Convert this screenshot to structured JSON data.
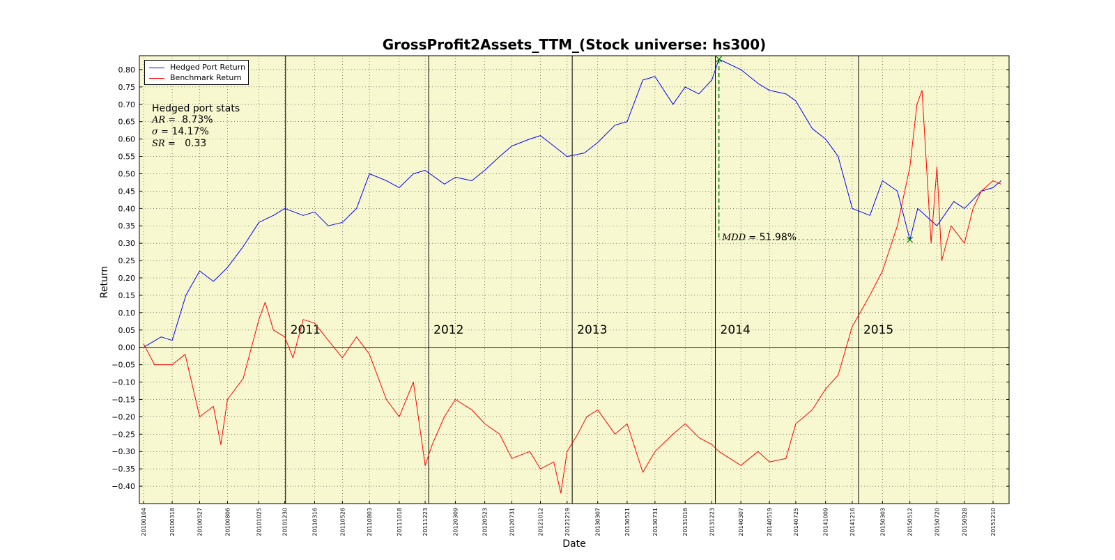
{
  "chart_data": {
    "type": "line",
    "title": "GrossProfit2Assets_TTM_(Stock universe: hs300)",
    "xlabel": "Date",
    "ylabel": "Return",
    "ylim": [
      -0.45,
      0.84
    ],
    "grid": true,
    "legend_position": "top-left",
    "background_color": "#f8f8d0",
    "x_tick_labels": [
      "20100104",
      "20100318",
      "20100527",
      "20100806",
      "20101025",
      "20101230",
      "20110316",
      "20110526",
      "20110803",
      "20111018",
      "20111223",
      "20120309",
      "20120523",
      "20120731",
      "20121012",
      "20121219",
      "20130307",
      "20130521",
      "20130731",
      "20131016",
      "20131223",
      "20140307",
      "20140519",
      "20140725",
      "20141009",
      "20141216",
      "20150303",
      "20150512",
      "20150720",
      "20150928",
      "20151210"
    ],
    "y_ticks": [
      -0.4,
      -0.35,
      -0.3,
      -0.25,
      -0.2,
      -0.15,
      -0.1,
      -0.05,
      0.0,
      0.05,
      0.1,
      0.15,
      0.2,
      0.25,
      0.3,
      0.35,
      0.4,
      0.45,
      0.5,
      0.55,
      0.6,
      0.65,
      0.7,
      0.75,
      0.8
    ],
    "y_tick_labels": [
      "−0.40",
      "−0.35",
      "−0.30",
      "−0.25",
      "−0.20",
      "−0.15",
      "−0.10",
      "−0.05",
      "0.00",
      "0.05",
      "0.10",
      "0.15",
      "0.20",
      "0.25",
      "0.30",
      "0.35",
      "0.40",
      "0.45",
      "0.50",
      "0.55",
      "0.60",
      "0.65",
      "0.70",
      "0.75",
      "0.80"
    ],
    "year_labels": [
      "2011",
      "2012",
      "2013",
      "2014",
      "2015"
    ],
    "series": [
      {
        "name": "Hedged Port Return",
        "color": "#0000ff",
        "x": [
          "20100104",
          "20100218",
          "20100318",
          "20100422",
          "20100527",
          "20100701",
          "20100806",
          "20100915",
          "20101025",
          "20101201",
          "20101230",
          "20110215",
          "20110316",
          "20110420",
          "20110526",
          "20110701",
          "20110803",
          "20110915",
          "20111018",
          "20111123",
          "20111223",
          "20120210",
          "20120309",
          "20120420",
          "20120523",
          "20120630",
          "20120731",
          "20120915",
          "20121012",
          "20121115",
          "20121219",
          "20130201",
          "20130307",
          "20130420",
          "20130521",
          "20130630",
          "20130731",
          "20130915",
          "20131016",
          "20131120",
          "20131223",
          "20140110",
          "20140307",
          "20140420",
          "20140519",
          "20140630",
          "20140725",
          "20140905",
          "20141009",
          "20141110",
          "20141216",
          "20150130",
          "20150303",
          "20150410",
          "20150512",
          "20150601",
          "20150720",
          "20150901",
          "20150928",
          "20151110",
          "20151210",
          "20151231"
        ],
        "values": [
          0.0,
          0.03,
          0.02,
          0.15,
          0.22,
          0.19,
          0.23,
          0.29,
          0.36,
          0.38,
          0.4,
          0.38,
          0.39,
          0.35,
          0.36,
          0.4,
          0.5,
          0.48,
          0.46,
          0.5,
          0.51,
          0.47,
          0.49,
          0.48,
          0.51,
          0.55,
          0.58,
          0.6,
          0.61,
          0.58,
          0.55,
          0.56,
          0.59,
          0.64,
          0.65,
          0.77,
          0.78,
          0.7,
          0.75,
          0.73,
          0.77,
          0.83,
          0.8,
          0.76,
          0.74,
          0.73,
          0.71,
          0.63,
          0.6,
          0.55,
          0.4,
          0.38,
          0.48,
          0.45,
          0.31,
          0.4,
          0.35,
          0.42,
          0.4,
          0.45,
          0.46,
          0.48
        ]
      },
      {
        "name": "Benchmark Return",
        "color": "#ff0000",
        "x": [
          "20100104",
          "20100201",
          "20100318",
          "20100420",
          "20100527",
          "20100701",
          "20100720",
          "20100806",
          "20100915",
          "20101025",
          "20101110",
          "20101201",
          "20101230",
          "20110120",
          "20110215",
          "20110316",
          "20110420",
          "20110526",
          "20110701",
          "20110803",
          "20110915",
          "20111018",
          "20111123",
          "20111223",
          "20120110",
          "20120210",
          "20120309",
          "20120420",
          "20120523",
          "20120630",
          "20120731",
          "20120915",
          "20121012",
          "20121115",
          "20121203",
          "20121219",
          "20130115",
          "20130207",
          "20130307",
          "20130420",
          "20130521",
          "20130630",
          "20130731",
          "20130915",
          "20131016",
          "20131120",
          "20131223",
          "20140110",
          "20140307",
          "20140420",
          "20140519",
          "20140630",
          "20140725",
          "20140905",
          "20141009",
          "20141110",
          "20141216",
          "20150130",
          "20150303",
          "20150410",
          "20150512",
          "20150530",
          "20150612",
          "20150705",
          "20150720",
          "20150801",
          "20150825",
          "20150928",
          "20151020",
          "20151110",
          "20151210",
          "20151231"
        ],
        "values": [
          0.01,
          -0.05,
          -0.05,
          -0.02,
          -0.2,
          -0.17,
          -0.28,
          -0.15,
          -0.09,
          0.08,
          0.13,
          0.05,
          0.03,
          -0.03,
          0.08,
          0.07,
          0.02,
          -0.03,
          0.03,
          -0.02,
          -0.15,
          -0.2,
          -0.1,
          -0.34,
          -0.28,
          -0.2,
          -0.15,
          -0.18,
          -0.22,
          -0.25,
          -0.32,
          -0.3,
          -0.35,
          -0.33,
          -0.42,
          -0.3,
          -0.25,
          -0.2,
          -0.18,
          -0.25,
          -0.22,
          -0.36,
          -0.3,
          -0.25,
          -0.22,
          -0.26,
          -0.28,
          -0.3,
          -0.34,
          -0.3,
          -0.33,
          -0.32,
          -0.22,
          -0.18,
          -0.12,
          -0.08,
          0.06,
          0.15,
          0.22,
          0.35,
          0.52,
          0.7,
          0.74,
          0.3,
          0.52,
          0.25,
          0.35,
          0.3,
          0.4,
          0.45,
          0.48,
          0.47
        ]
      }
    ],
    "stats_box": {
      "heading": "Hedged port stats",
      "ar_symbol": "AR =",
      "ar_value": "8.73%",
      "sigma_symbol": "σ =",
      "sigma_value": "14.17%",
      "sr_symbol": "SR =",
      "sr_value": "0.33"
    },
    "max_drawdown": {
      "symbol": "MDD =",
      "value": "51.98%",
      "peak_date": "20140110",
      "peak_value": 0.83,
      "trough_date": "20150512",
      "trough_value": 0.31,
      "color": "#008000"
    }
  }
}
